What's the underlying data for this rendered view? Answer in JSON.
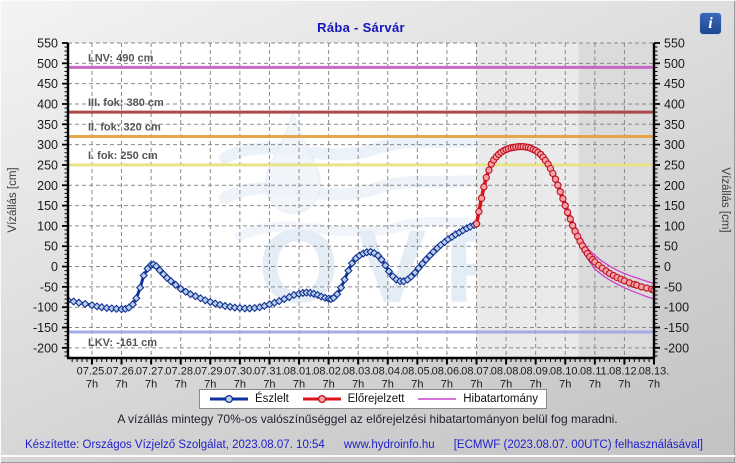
{
  "header": {
    "title": "Rába - Sárvár",
    "info_glyph": "i"
  },
  "watermark": {
    "text": "OVF",
    "color": "#cfdff0"
  },
  "note": {
    "text": "A vízállás mintegy 70%-os valószínűséggel az előrejelzési hibatartományon belül fog maradni."
  },
  "footer": {
    "left": "Készítette: Országos Vízjelző Szolgálat, 2023.08.07. 10:54",
    "center": "www.hydroinfo.hu",
    "right": "[ECMWF (2023.08.07. 00UTC) felhasználásával]"
  },
  "legend": [
    {
      "label": "Észlelt"
    },
    {
      "label": "Előrejelzett"
    },
    {
      "label": "Hibatartomány"
    }
  ],
  "reference_lines": [
    {
      "label": "LNV: 490 cm",
      "value": 490,
      "color": "#c263c2",
      "label_below": false
    },
    {
      "label": "III. fok: 380 cm",
      "value": 380,
      "color": "#a84242",
      "label_below": false
    },
    {
      "label": "II. fok: 320 cm",
      "value": 320,
      "color": "#e5a342",
      "label_below": false
    },
    {
      "label": "I. fok: 250 cm",
      "value": 250,
      "color": "#eae482",
      "label_below": false
    },
    {
      "label": "LKV: -161 cm",
      "value": -161,
      "color": "#a2a8e6",
      "label_below": true
    }
  ],
  "chart_data": {
    "type": "line",
    "title": "Rába - Sárvár",
    "ylabel_left": "Vízállás [cm]",
    "ylabel_right": "Vízállás [cm]",
    "ylim": [
      -225,
      550
    ],
    "y_ticks": [
      550,
      500,
      450,
      400,
      350,
      300,
      250,
      200,
      150,
      100,
      50,
      0,
      -50,
      -100,
      -150,
      -200
    ],
    "y_minor_step": 10,
    "x_unit": "days since 07.25. 07h",
    "xlim": [
      -0.81,
      19
    ],
    "x_minor_step": 0.1667,
    "grid": true,
    "x_ticks": [
      {
        "date": "07.25.",
        "hour": "7h"
      },
      {
        "date": "07.26.",
        "hour": "7h"
      },
      {
        "date": "07.27.",
        "hour": "7h"
      },
      {
        "date": "07.28.",
        "hour": "7h"
      },
      {
        "date": "07.29.",
        "hour": "7h"
      },
      {
        "date": "07.30.",
        "hour": "7h"
      },
      {
        "date": "07.31.",
        "hour": "7h"
      },
      {
        "date": "08.01.",
        "hour": "7h"
      },
      {
        "date": "08.02.",
        "hour": "7h"
      },
      {
        "date": "08.03.",
        "hour": "7h"
      },
      {
        "date": "08.04.",
        "hour": "7h"
      },
      {
        "date": "08.05.",
        "hour": "7h"
      },
      {
        "date": "08.06.",
        "hour": "7h"
      },
      {
        "date": "08.07.",
        "hour": "7h"
      },
      {
        "date": "08.08.",
        "hour": "7h"
      },
      {
        "date": "08.09.",
        "hour": "7h"
      },
      {
        "date": "08.10.",
        "hour": "7h"
      },
      {
        "date": "08.11.",
        "hour": "7h"
      },
      {
        "date": "08.12.",
        "hour": "7h"
      },
      {
        "date": "08.13.",
        "hour": "7h"
      }
    ],
    "regions": [
      {
        "name": "forecast-zone",
        "t0": 13,
        "t1": 16.45,
        "color": "#eaeaea"
      },
      {
        "name": "far-forecast-zone",
        "t0": 16.45,
        "t1": 19,
        "color": "#dbdbdb"
      }
    ],
    "series": [
      {
        "name": "Észlelt",
        "color": "#10309f",
        "marker": "diamond",
        "marker_fill": "#b9cfec",
        "marker_stroke": "#12308f",
        "points": [
          [
            -0.81,
            -83
          ],
          [
            -0.62,
            -86
          ],
          [
            -0.44,
            -89
          ],
          [
            -0.23,
            -92
          ],
          [
            0,
            -95
          ],
          [
            0.17,
            -98
          ],
          [
            0.33,
            -100
          ],
          [
            0.5,
            -102
          ],
          [
            0.67,
            -103
          ],
          [
            0.83,
            -104
          ],
          [
            1.0,
            -105
          ],
          [
            1.13,
            -104
          ],
          [
            1.25,
            -101
          ],
          [
            1.38,
            -93
          ],
          [
            1.5,
            -78
          ],
          [
            1.63,
            -52
          ],
          [
            1.75,
            -22
          ],
          [
            1.88,
            -5
          ],
          [
            2.0,
            4
          ],
          [
            2.08,
            5
          ],
          [
            2.17,
            1
          ],
          [
            2.29,
            -9
          ],
          [
            2.42,
            -19
          ],
          [
            2.54,
            -28
          ],
          [
            2.67,
            -36
          ],
          [
            2.83,
            -45
          ],
          [
            3.0,
            -55
          ],
          [
            3.17,
            -62
          ],
          [
            3.33,
            -68
          ],
          [
            3.5,
            -73
          ],
          [
            3.67,
            -78
          ],
          [
            3.83,
            -83
          ],
          [
            4.0,
            -87
          ],
          [
            4.17,
            -91
          ],
          [
            4.33,
            -94
          ],
          [
            4.5,
            -97
          ],
          [
            4.67,
            -99
          ],
          [
            4.83,
            -101
          ],
          [
            5.0,
            -102
          ],
          [
            5.17,
            -103
          ],
          [
            5.33,
            -103
          ],
          [
            5.5,
            -102
          ],
          [
            5.67,
            -100
          ],
          [
            5.83,
            -97
          ],
          [
            6.0,
            -93
          ],
          [
            6.17,
            -89
          ],
          [
            6.33,
            -85
          ],
          [
            6.5,
            -80
          ],
          [
            6.67,
            -75
          ],
          [
            6.83,
            -70
          ],
          [
            7.0,
            -67
          ],
          [
            7.13,
            -65
          ],
          [
            7.25,
            -64
          ],
          [
            7.38,
            -65
          ],
          [
            7.5,
            -67
          ],
          [
            7.63,
            -70
          ],
          [
            7.75,
            -74
          ],
          [
            7.88,
            -77
          ],
          [
            8.0,
            -79
          ],
          [
            8.08,
            -80
          ],
          [
            8.17,
            -77
          ],
          [
            8.29,
            -68
          ],
          [
            8.42,
            -52
          ],
          [
            8.54,
            -32
          ],
          [
            8.67,
            -10
          ],
          [
            8.79,
            8
          ],
          [
            8.92,
            20
          ],
          [
            9.04,
            27
          ],
          [
            9.17,
            32
          ],
          [
            9.29,
            35
          ],
          [
            9.42,
            36
          ],
          [
            9.54,
            33
          ],
          [
            9.67,
            27
          ],
          [
            9.79,
            17
          ],
          [
            9.92,
            3
          ],
          [
            10.04,
            -12
          ],
          [
            10.17,
            -24
          ],
          [
            10.29,
            -32
          ],
          [
            10.42,
            -36
          ],
          [
            10.54,
            -36
          ],
          [
            10.67,
            -32
          ],
          [
            10.79,
            -25
          ],
          [
            10.92,
            -15
          ],
          [
            11.04,
            -4
          ],
          [
            11.17,
            7
          ],
          [
            11.29,
            17
          ],
          [
            11.42,
            27
          ],
          [
            11.54,
            36
          ],
          [
            11.67,
            45
          ],
          [
            11.79,
            53
          ],
          [
            11.92,
            60
          ],
          [
            12.04,
            67
          ],
          [
            12.17,
            73
          ],
          [
            12.29,
            79
          ],
          [
            12.42,
            84
          ],
          [
            12.54,
            89
          ],
          [
            12.67,
            94
          ],
          [
            12.79,
            98
          ],
          [
            12.92,
            102
          ],
          [
            13.0,
            105
          ]
        ]
      },
      {
        "name": "Előrejelzett",
        "color": "#dc1420",
        "marker": "circle",
        "marker_fill": "#f4a2a6",
        "marker_stroke": "#c01020",
        "band_name": "Hibatartomány",
        "band_color": "#cc44cc",
        "points": [
          [
            13.0,
            105
          ],
          [
            13.08,
            135
          ],
          [
            13.17,
            168
          ],
          [
            13.25,
            196
          ],
          [
            13.33,
            219
          ],
          [
            13.42,
            237
          ],
          [
            13.5,
            252
          ],
          [
            13.58,
            262
          ],
          [
            13.67,
            270
          ],
          [
            13.75,
            276
          ],
          [
            13.83,
            281
          ],
          [
            13.92,
            285
          ],
          [
            14.0,
            288
          ],
          [
            14.08,
            290
          ],
          [
            14.17,
            292
          ],
          [
            14.25,
            293
          ],
          [
            14.33,
            294
          ],
          [
            14.42,
            295
          ],
          [
            14.5,
            295
          ],
          [
            14.58,
            295
          ],
          [
            14.67,
            294
          ],
          [
            14.75,
            293
          ],
          [
            14.83,
            291
          ],
          [
            14.92,
            288
          ],
          [
            15.0,
            285
          ],
          [
            15.08,
            281
          ],
          [
            15.17,
            276
          ],
          [
            15.25,
            269
          ],
          [
            15.33,
            261
          ],
          [
            15.42,
            252
          ],
          [
            15.5,
            241
          ],
          [
            15.58,
            229
          ],
          [
            15.67,
            215
          ],
          [
            15.75,
            200
          ],
          [
            15.83,
            184
          ],
          [
            15.92,
            167
          ],
          [
            16.0,
            150
          ],
          [
            16.08,
            133
          ],
          [
            16.17,
            117
          ],
          [
            16.25,
            101
          ],
          [
            16.33,
            87
          ],
          [
            16.42,
            74
          ],
          [
            16.5,
            62
          ],
          [
            16.58,
            51
          ],
          [
            16.67,
            41
          ],
          [
            16.75,
            32
          ],
          [
            16.83,
            24
          ],
          [
            16.92,
            17
          ],
          [
            17.0,
            11
          ],
          [
            17.13,
            3
          ],
          [
            17.25,
            -4
          ],
          [
            17.38,
            -11
          ],
          [
            17.5,
            -17
          ],
          [
            17.63,
            -22
          ],
          [
            17.75,
            -27
          ],
          [
            17.88,
            -31
          ],
          [
            18.0,
            -35
          ],
          [
            18.17,
            -40
          ],
          [
            18.33,
            -44
          ],
          [
            18.42,
            -46
          ],
          [
            18.58,
            -50
          ],
          [
            18.75,
            -53
          ],
          [
            18.92,
            -56
          ],
          [
            19.0,
            -58
          ]
        ],
        "band_upper": [
          [
            13.0,
            107
          ],
          [
            13.25,
            200
          ],
          [
            13.5,
            257
          ],
          [
            13.75,
            281
          ],
          [
            14.0,
            293
          ],
          [
            14.25,
            298
          ],
          [
            14.5,
            301
          ],
          [
            14.75,
            299
          ],
          [
            15.0,
            292
          ],
          [
            15.25,
            277
          ],
          [
            15.5,
            250
          ],
          [
            15.75,
            210
          ],
          [
            16.0,
            162
          ],
          [
            16.25,
            114
          ],
          [
            16.5,
            75
          ],
          [
            16.75,
            45
          ],
          [
            17.0,
            28
          ],
          [
            17.25,
            13
          ],
          [
            17.5,
            1
          ],
          [
            17.75,
            -9
          ],
          [
            18.0,
            -17
          ],
          [
            18.25,
            -24
          ],
          [
            18.5,
            -30
          ],
          [
            18.75,
            -36
          ],
          [
            19.0,
            -42
          ]
        ],
        "band_lower": [
          [
            13.0,
            103
          ],
          [
            13.25,
            192
          ],
          [
            13.5,
            247
          ],
          [
            13.75,
            271
          ],
          [
            14.0,
            283
          ],
          [
            14.25,
            288
          ],
          [
            14.5,
            289
          ],
          [
            14.75,
            287
          ],
          [
            15.0,
            278
          ],
          [
            15.25,
            261
          ],
          [
            15.5,
            232
          ],
          [
            15.75,
            190
          ],
          [
            16.0,
            138
          ],
          [
            16.25,
            88
          ],
          [
            16.5,
            49
          ],
          [
            16.75,
            19
          ],
          [
            17.0,
            -6
          ],
          [
            17.25,
            -21
          ],
          [
            17.5,
            -33
          ],
          [
            17.75,
            -43
          ],
          [
            18.0,
            -52
          ],
          [
            18.25,
            -60
          ],
          [
            18.5,
            -67
          ],
          [
            18.75,
            -74
          ],
          [
            19.0,
            -80
          ]
        ]
      }
    ]
  }
}
